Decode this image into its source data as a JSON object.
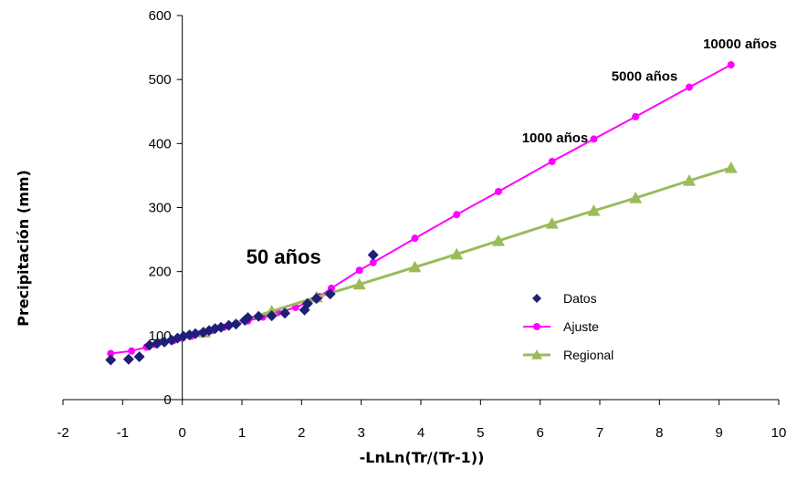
{
  "chart_data": {
    "type": "scatter",
    "xlabel": "-LnLn(Tr/(Tr-1))",
    "ylabel": "Precipitación (mm)",
    "xlim": [
      -2,
      10
    ],
    "ylim": [
      0,
      600
    ],
    "x_ticks": [
      -2,
      -1,
      0,
      1,
      2,
      3,
      4,
      5,
      6,
      7,
      8,
      9,
      10
    ],
    "y_ticks": [
      0,
      100,
      200,
      300,
      400,
      500,
      600
    ],
    "grid": false,
    "legend_position": "right",
    "series": [
      {
        "name": "Datos",
        "marker": "diamond",
        "line": false,
        "color": "#1f1f7a",
        "points": [
          [
            -1.2,
            62
          ],
          [
            -0.9,
            63
          ],
          [
            -0.72,
            67
          ],
          [
            -0.55,
            85
          ],
          [
            -0.42,
            88
          ],
          [
            -0.3,
            90
          ],
          [
            -0.18,
            93
          ],
          [
            -0.08,
            96
          ],
          [
            0.02,
            99
          ],
          [
            0.12,
            101
          ],
          [
            0.22,
            103
          ],
          [
            0.35,
            105
          ],
          [
            0.45,
            108
          ],
          [
            0.55,
            111
          ],
          [
            0.65,
            113
          ],
          [
            0.78,
            116
          ],
          [
            0.9,
            118
          ],
          [
            1.05,
            124
          ],
          [
            1.1,
            128
          ],
          [
            1.28,
            130
          ],
          [
            1.5,
            131
          ],
          [
            1.72,
            135
          ],
          [
            2.05,
            140
          ],
          [
            2.1,
            150
          ],
          [
            2.25,
            158
          ],
          [
            2.48,
            165
          ],
          [
            3.2,
            226
          ]
        ]
      },
      {
        "name": "Ajuste",
        "marker": "circle",
        "line": true,
        "color": "#ff00ff",
        "points": [
          [
            -1.2,
            72
          ],
          [
            -0.85,
            76
          ],
          [
            -0.6,
            82
          ],
          [
            -0.45,
            86
          ],
          [
            -0.3,
            89
          ],
          [
            -0.15,
            92
          ],
          [
            0.0,
            96
          ],
          [
            0.15,
            99
          ],
          [
            0.3,
            103
          ],
          [
            0.5,
            108
          ],
          [
            0.7,
            113
          ],
          [
            0.9,
            118
          ],
          [
            1.1,
            123
          ],
          [
            1.35,
            129
          ],
          [
            1.6,
            136
          ],
          [
            1.9,
            144
          ],
          [
            2.1,
            152
          ],
          [
            2.3,
            161
          ],
          [
            2.5,
            174
          ],
          [
            2.97,
            202
          ],
          [
            3.2,
            214
          ],
          [
            3.9,
            252
          ],
          [
            4.6,
            289
          ],
          [
            5.3,
            325
          ],
          [
            6.2,
            372
          ],
          [
            6.9,
            407
          ],
          [
            7.6,
            442
          ],
          [
            8.5,
            488
          ],
          [
            9.2,
            523
          ]
        ]
      },
      {
        "name": "Regional",
        "marker": "triangle",
        "line": true,
        "color": "#9bbb59",
        "points": [
          [
            0.37,
            105
          ],
          [
            1.5,
            138
          ],
          [
            2.25,
            160
          ],
          [
            2.97,
            180
          ],
          [
            3.9,
            207
          ],
          [
            4.6,
            227
          ],
          [
            5.3,
            248
          ],
          [
            6.2,
            275
          ],
          [
            6.9,
            295
          ],
          [
            7.6,
            315
          ],
          [
            8.5,
            342
          ],
          [
            9.2,
            362
          ]
        ]
      }
    ],
    "annotations": [
      {
        "text": "50 años",
        "x": 1.7,
        "y": 212,
        "size": "large"
      },
      {
        "text": "1000 años",
        "x": 6.25,
        "y": 402,
        "size": "small"
      },
      {
        "text": "5000 años",
        "x": 7.75,
        "y": 498,
        "size": "small"
      },
      {
        "text": "10000 años",
        "x": 9.35,
        "y": 549,
        "size": "small"
      }
    ]
  }
}
